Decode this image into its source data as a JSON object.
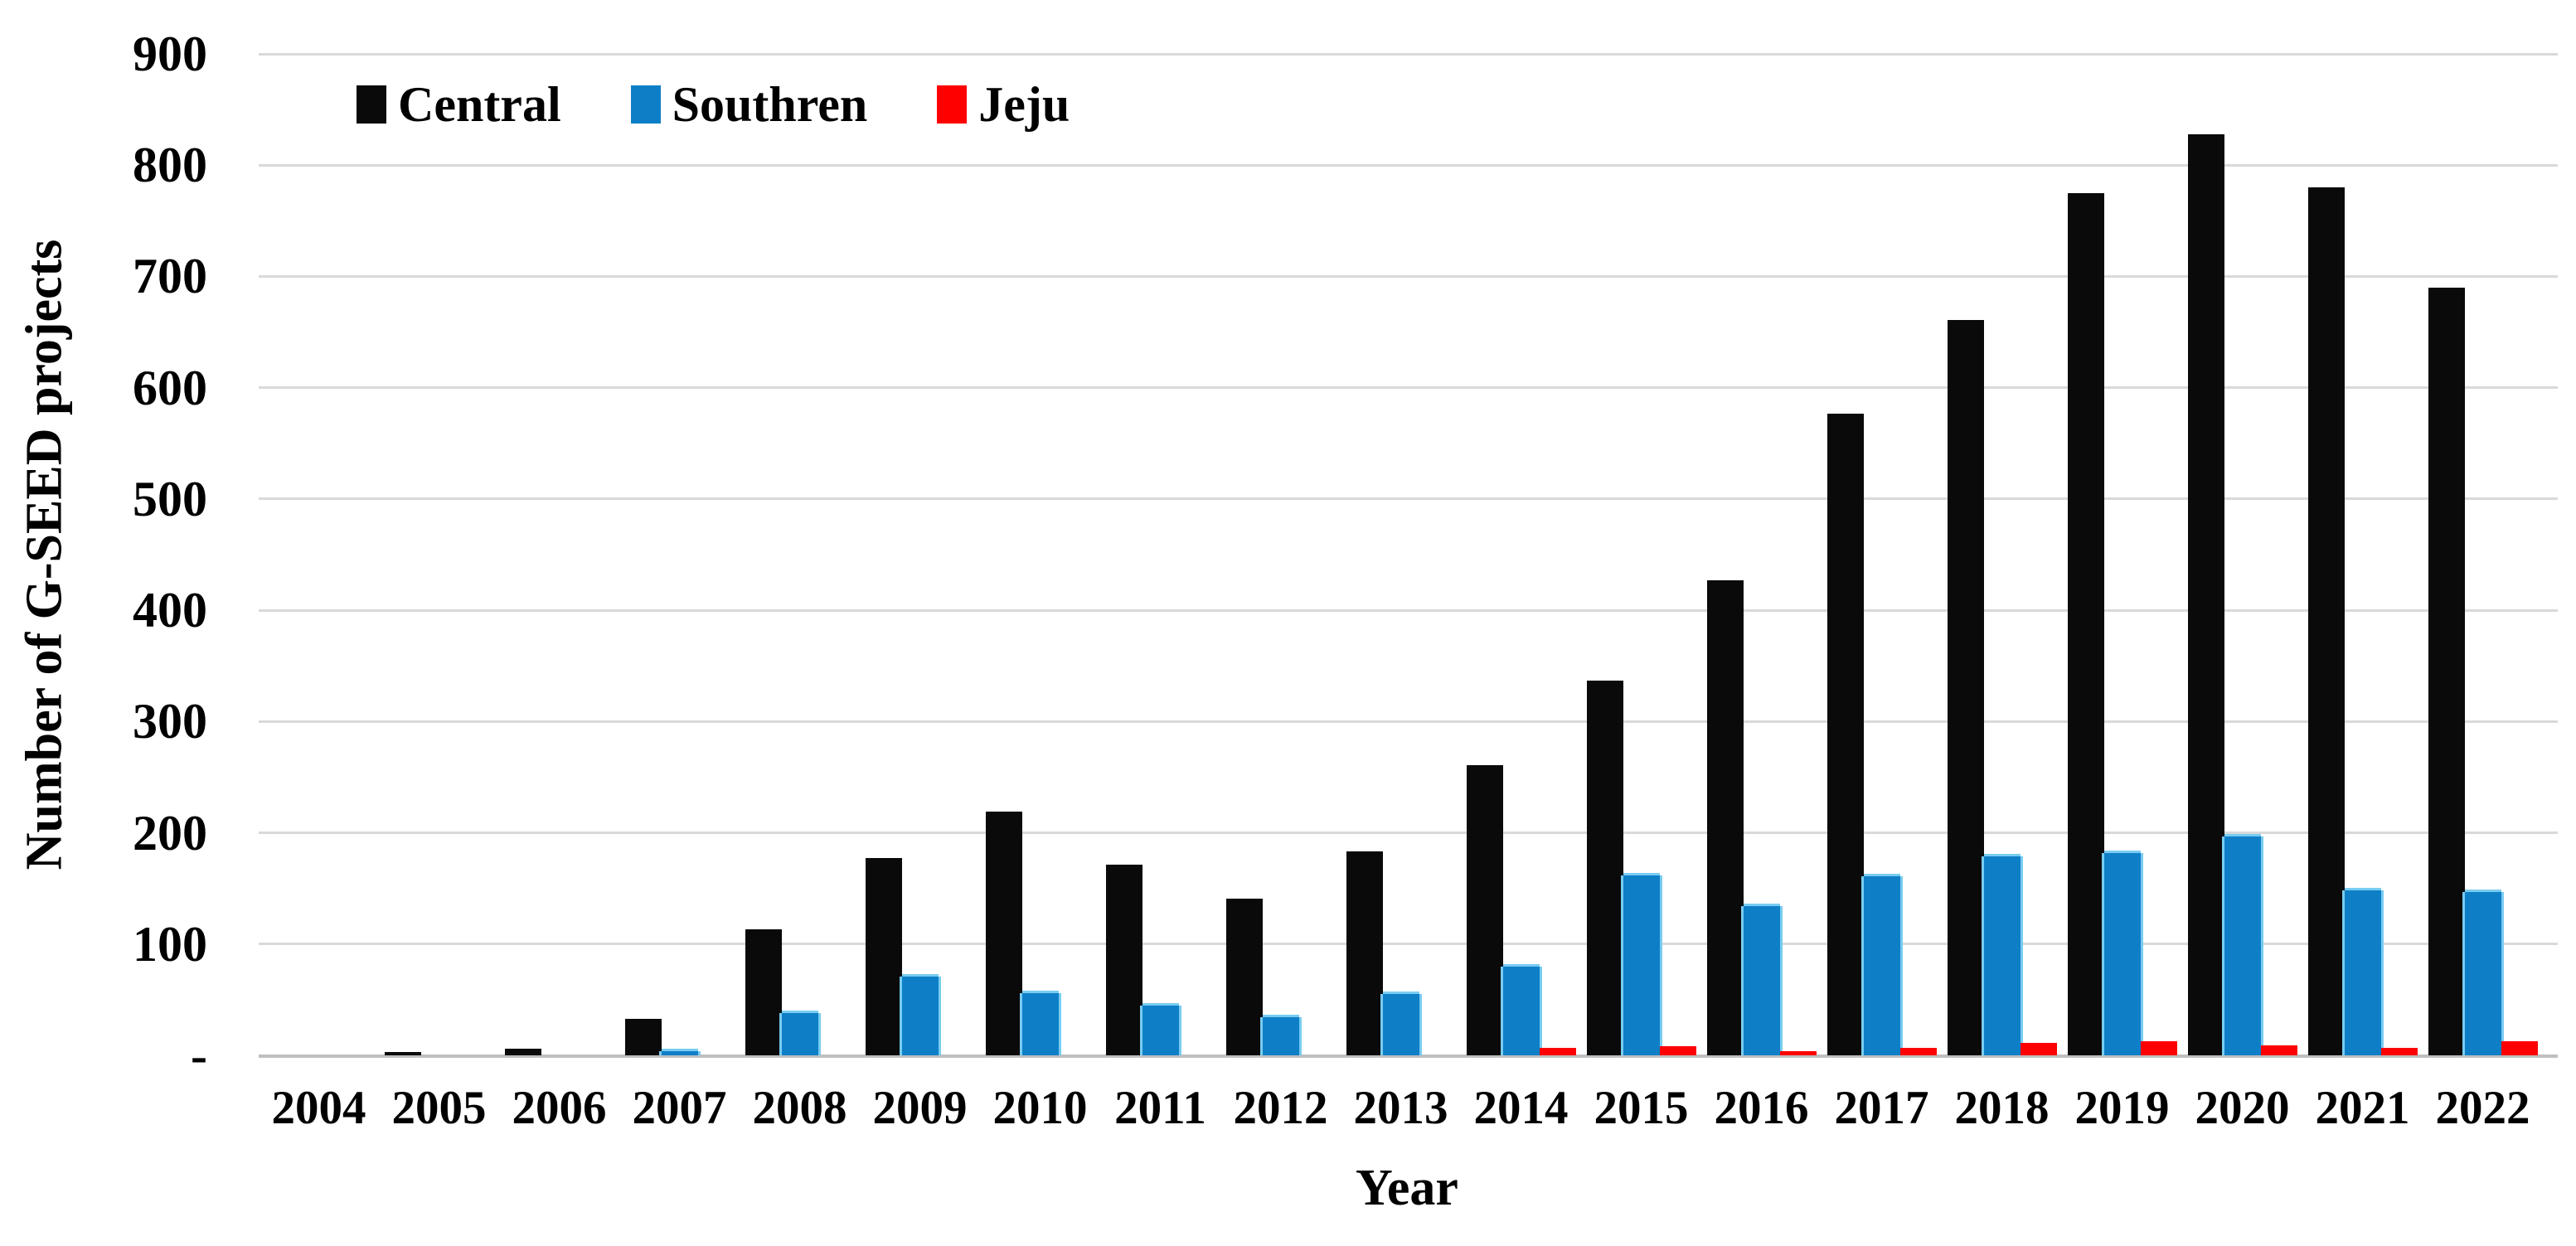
{
  "figure": {
    "description": "Bar chart of the number of G-SEED certified projects per year by region"
  },
  "legend": {
    "items": [
      {
        "label": "Central",
        "color": "#0a0a0a"
      },
      {
        "label": "Southren",
        "color": "#0e7fc7"
      },
      {
        "label": "Jeju",
        "color": "#fe0000"
      }
    ]
  },
  "y_axis": {
    "title": "Number of G-SEED projects",
    "tick_labels": [
      "900",
      "800",
      "700",
      "600",
      "500",
      "400",
      "300",
      "200",
      "100",
      "-"
    ],
    "max": 900,
    "min": 0,
    "step": 100
  },
  "x_axis": {
    "title": "Year"
  },
  "chart_data": {
    "type": "bar",
    "title": "",
    "xlabel": "Year",
    "ylabel": "Number of G-SEED projects",
    "ylim": [
      0,
      900
    ],
    "grid": "horizontal-only",
    "legend_position": "top-left",
    "categories": [
      "2004",
      "2005",
      "2006",
      "2007",
      "2008",
      "2009",
      "2010",
      "2011",
      "2012",
      "2013",
      "2014",
      "2015",
      "2016",
      "2017",
      "2018",
      "2019",
      "2020",
      "2021",
      "2022"
    ],
    "series": [
      {
        "name": "Central",
        "color": "#0a0a0a",
        "values": [
          0,
          3,
          6,
          33,
          113,
          177,
          219,
          171,
          141,
          183,
          261,
          337,
          427,
          577,
          661,
          775,
          828,
          780,
          690
        ]
      },
      {
        "name": "Southren",
        "color": "#0e7fc7",
        "values": [
          0,
          0,
          0,
          4,
          38,
          71,
          56,
          45,
          34,
          55,
          80,
          162,
          134,
          161,
          179,
          182,
          197,
          148,
          147
        ]
      },
      {
        "name": "Jeju",
        "color": "#fe0000",
        "values": [
          0,
          0,
          0,
          0,
          0,
          0,
          0,
          0,
          0,
          0,
          7,
          8,
          4,
          7,
          11,
          13,
          9,
          7,
          13
        ]
      }
    ]
  }
}
